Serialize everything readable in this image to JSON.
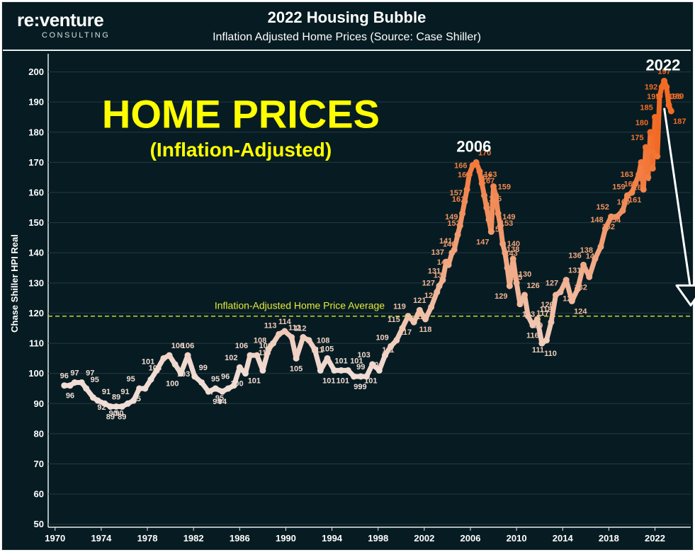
{
  "header": {
    "logo_main": "re:venture",
    "logo_sub": "CONSULTING",
    "title": "2022 Housing Bubble",
    "subtitle": "Inflation Adjusted Home Prices (Source: Case Shiller)"
  },
  "chart_data": {
    "type": "line",
    "title": "2022 Housing Bubble",
    "subtitle": "Inflation Adjusted Home Prices (Source: Case Shiller)",
    "ylabel": "Chase Shiller  HPI Real",
    "xlabel": "",
    "ylim": [
      49,
      206
    ],
    "xlim": [
      1969.4,
      2025.1
    ],
    "yticks": [
      50,
      60,
      70,
      80,
      90,
      100,
      110,
      120,
      130,
      140,
      150,
      160,
      170,
      180,
      190,
      200
    ],
    "xticks": [
      1970,
      1974,
      1978,
      1982,
      1986,
      1990,
      1994,
      1998,
      2002,
      2006,
      2010,
      2014,
      2018,
      2022
    ],
    "grid": true,
    "color_low": "#f0ddd5",
    "color_high": "#f26b25",
    "average_line": {
      "value": 119,
      "label": "Inflation-Adjusted Home Price Average",
      "color": "#c8d62b"
    },
    "overlay_title": "HOME PRICES",
    "overlay_subtitle": "(Inflation-Adjusted)",
    "overlay_color": "#ffff00",
    "annotations": [
      {
        "text": "2006",
        "x": 2006.3,
        "y": 173.5
      },
      {
        "text": "2022",
        "x": 2022.7,
        "y": 200.5
      }
    ],
    "projection_arrow": {
      "x0": 2022.8,
      "y0": 188,
      "x1": 2025.1,
      "y1": 124
    },
    "series": [
      {
        "name": "Chase Shiller HPI Real",
        "points": [
          {
            "x": 1970.8,
            "y": 96
          },
          {
            "x": 1971.3,
            "y": 96
          },
          {
            "x": 1971.7,
            "y": 97
          },
          {
            "x": 1972.3,
            "y": 97
          },
          {
            "x": 1972.7,
            "y": 95
          },
          {
            "x": 1973.3,
            "y": 92
          },
          {
            "x": 1973.7,
            "y": 91
          },
          {
            "x": 1974.3,
            "y": 90
          },
          {
            "x": 1974.8,
            "y": 89
          },
          {
            "x": 1975.3,
            "y": 89
          },
          {
            "x": 1975.8,
            "y": 89
          },
          {
            "x": 1976.3,
            "y": 90
          },
          {
            "x": 1976.8,
            "y": 91
          },
          {
            "x": 1977.3,
            "y": 95
          },
          {
            "x": 1977.8,
            "y": 95
          },
          {
            "x": 1978.3,
            "y": 98
          },
          {
            "x": 1978.8,
            "y": 101
          },
          {
            "x": 1979.4,
            "y": 105
          },
          {
            "x": 1979.9,
            "y": 106
          },
          {
            "x": 1980.4,
            "y": 103
          },
          {
            "x": 1980.9,
            "y": 100
          },
          {
            "x": 1981.5,
            "y": 106
          },
          {
            "x": 1982.1,
            "y": 99
          },
          {
            "x": 1982.7,
            "y": 97
          },
          {
            "x": 1983.3,
            "y": 94
          },
          {
            "x": 1983.9,
            "y": 95
          },
          {
            "x": 1984.5,
            "y": 94
          },
          {
            "x": 1985.0,
            "y": 95
          },
          {
            "x": 1985.5,
            "y": 96
          },
          {
            "x": 1986.0,
            "y": 102
          },
          {
            "x": 1986.5,
            "y": 100
          },
          {
            "x": 1986.9,
            "y": 106
          },
          {
            "x": 1987.5,
            "y": 106
          },
          {
            "x": 1988.0,
            "y": 101
          },
          {
            "x": 1988.5,
            "y": 108
          },
          {
            "x": 1988.9,
            "y": 110
          },
          {
            "x": 1989.4,
            "y": 113
          },
          {
            "x": 1989.9,
            "y": 114
          },
          {
            "x": 1990.5,
            "y": 112
          },
          {
            "x": 1990.9,
            "y": 105
          },
          {
            "x": 1991.5,
            "y": 112
          },
          {
            "x": 1992.0,
            "y": 111
          },
          {
            "x": 1992.5,
            "y": 108
          },
          {
            "x": 1993.0,
            "y": 101
          },
          {
            "x": 1993.6,
            "y": 105
          },
          {
            "x": 1994.2,
            "y": 101
          },
          {
            "x": 1994.8,
            "y": 101
          },
          {
            "x": 1995.4,
            "y": 101
          },
          {
            "x": 1995.9,
            "y": 99
          },
          {
            "x": 1996.5,
            "y": 99
          },
          {
            "x": 1997.0,
            "y": 99
          },
          {
            "x": 1997.5,
            "y": 103
          },
          {
            "x": 1998.1,
            "y": 101
          },
          {
            "x": 1998.6,
            "y": 106
          },
          {
            "x": 1999.1,
            "y": 109
          },
          {
            "x": 1999.6,
            "y": 111
          },
          {
            "x": 2000.1,
            "y": 115
          },
          {
            "x": 2000.6,
            "y": 119
          },
          {
            "x": 2001.1,
            "y": 117
          },
          {
            "x": 2001.6,
            "y": 121
          },
          {
            "x": 2002.1,
            "y": 118
          },
          {
            "x": 2002.6,
            "y": 122
          },
          {
            "x": 2003.1,
            "y": 127
          },
          {
            "x": 2003.3,
            "y": 129
          },
          {
            "x": 2003.6,
            "y": 131
          },
          {
            "x": 2003.9,
            "y": 137
          },
          {
            "x": 2004.1,
            "y": 136
          },
          {
            "x": 2004.4,
            "y": 140
          },
          {
            "x": 2004.6,
            "y": 141
          },
          {
            "x": 2004.9,
            "y": 146
          },
          {
            "x": 2005.1,
            "y": 149
          },
          {
            "x": 2005.3,
            "y": 153
          },
          {
            "x": 2005.5,
            "y": 157
          },
          {
            "x": 2005.7,
            "y": 161
          },
          {
            "x": 2005.9,
            "y": 166
          },
          {
            "x": 2006.2,
            "y": 169
          },
          {
            "x": 2006.5,
            "y": 170
          },
          {
            "x": 2006.8,
            "y": 167
          },
          {
            "x": 2007.0,
            "y": 163
          },
          {
            "x": 2007.2,
            "y": 159
          },
          {
            "x": 2007.4,
            "y": 155
          },
          {
            "x": 2007.6,
            "y": 151
          },
          {
            "x": 2007.8,
            "y": 147
          },
          {
            "x": 2008.0,
            "y": 162
          },
          {
            "x": 2008.2,
            "y": 159
          },
          {
            "x": 2008.4,
            "y": 153
          },
          {
            "x": 2008.6,
            "y": 149
          },
          {
            "x": 2008.8,
            "y": 143
          },
          {
            "x": 2009.0,
            "y": 140
          },
          {
            "x": 2009.2,
            "y": 135
          },
          {
            "x": 2009.4,
            "y": 129
          },
          {
            "x": 2009.7,
            "y": 138
          },
          {
            "x": 2010.0,
            "y": 130
          },
          {
            "x": 2010.3,
            "y": 123
          },
          {
            "x": 2010.7,
            "y": 126
          },
          {
            "x": 2011.0,
            "y": 119
          },
          {
            "x": 2011.4,
            "y": 116
          },
          {
            "x": 2011.8,
            "y": 118
          },
          {
            "x": 2012.2,
            "y": 110
          },
          {
            "x": 2012.6,
            "y": 111
          },
          {
            "x": 2013.0,
            "y": 117
          },
          {
            "x": 2013.4,
            "y": 126
          },
          {
            "x": 2013.8,
            "y": 127
          },
          {
            "x": 2014.3,
            "y": 131
          },
          {
            "x": 2014.8,
            "y": 124
          },
          {
            "x": 2015.3,
            "y": 128
          },
          {
            "x": 2015.8,
            "y": 136
          },
          {
            "x": 2016.3,
            "y": 132
          },
          {
            "x": 2016.8,
            "y": 138
          },
          {
            "x": 2017.3,
            "y": 142
          },
          {
            "x": 2017.7,
            "y": 148
          },
          {
            "x": 2018.2,
            "y": 152
          },
          {
            "x": 2018.7,
            "y": 152
          },
          {
            "x": 2019.2,
            "y": 154
          },
          {
            "x": 2019.6,
            "y": 159
          },
          {
            "x": 2020.0,
            "y": 160
          },
          {
            "x": 2020.3,
            "y": 163
          },
          {
            "x": 2020.6,
            "y": 166
          },
          {
            "x": 2020.8,
            "y": 170
          },
          {
            "x": 2021.0,
            "y": 161
          },
          {
            "x": 2021.2,
            "y": 175
          },
          {
            "x": 2021.4,
            "y": 165
          },
          {
            "x": 2021.6,
            "y": 180
          },
          {
            "x": 2021.8,
            "y": 168
          },
          {
            "x": 2022.0,
            "y": 185
          },
          {
            "x": 2022.2,
            "y": 172
          },
          {
            "x": 2022.4,
            "y": 192
          },
          {
            "x": 2022.6,
            "y": 195
          },
          {
            "x": 2022.8,
            "y": 197
          },
          {
            "x": 2023.0,
            "y": 195
          },
          {
            "x": 2023.2,
            "y": 189
          },
          {
            "x": 2023.4,
            "y": 187
          }
        ]
      }
    ]
  }
}
